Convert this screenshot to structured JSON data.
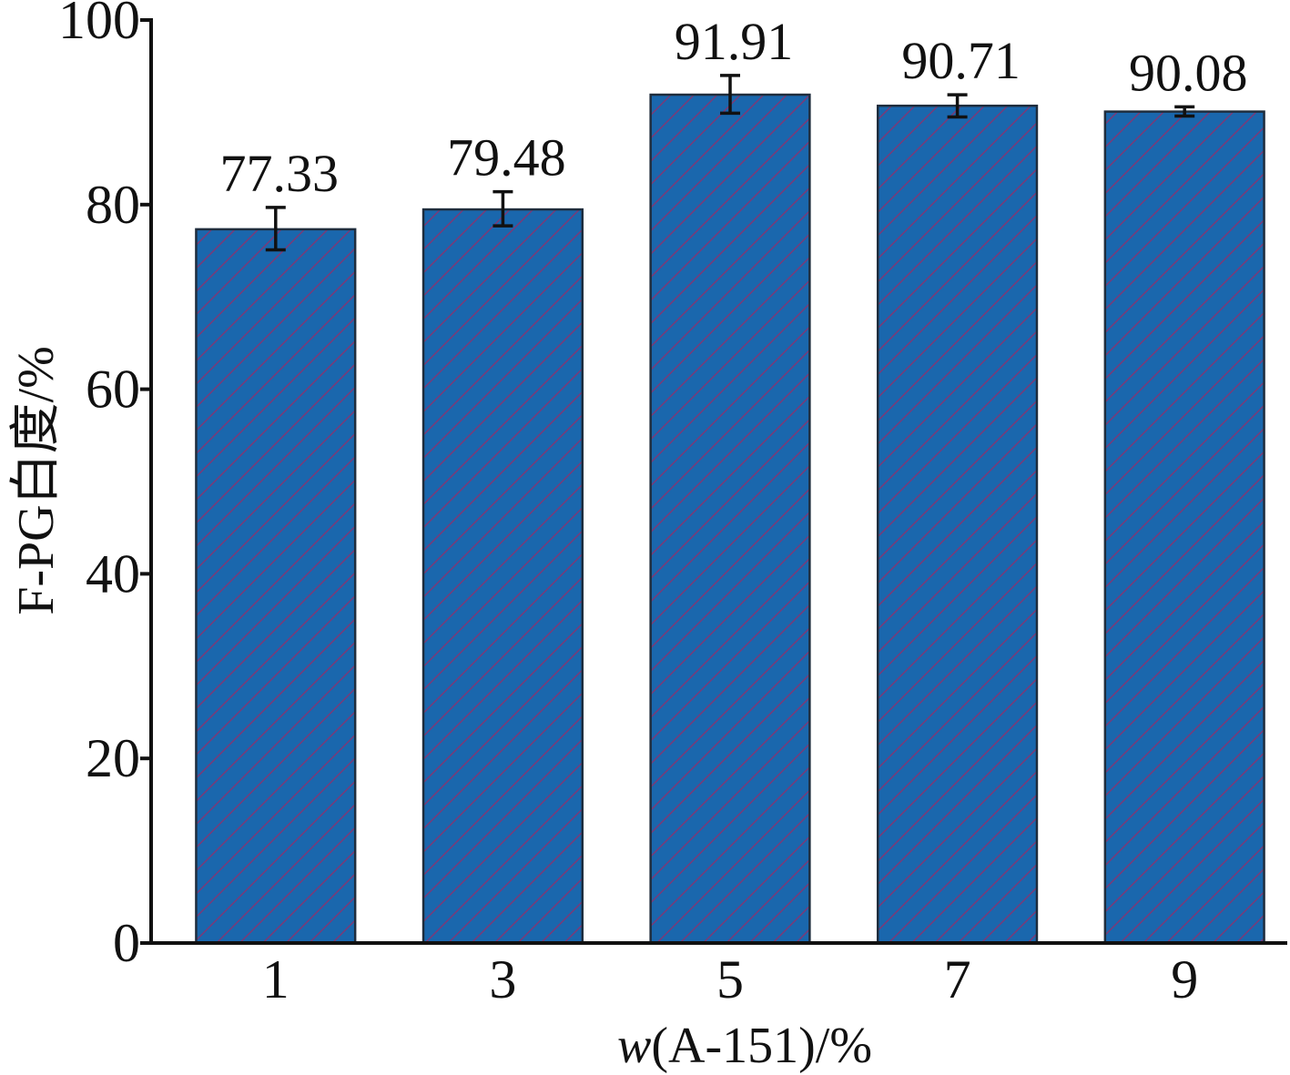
{
  "chart_data": {
    "type": "bar",
    "categories": [
      "1",
      "3",
      "5",
      "7",
      "9"
    ],
    "values": [
      77.33,
      79.48,
      91.91,
      90.71,
      90.08
    ],
    "error_low": [
      75.1,
      77.7,
      89.9,
      89.5,
      89.6
    ],
    "error_high": [
      79.7,
      81.4,
      94.0,
      91.9,
      90.6
    ],
    "value_labels": [
      "77.33",
      "79.48",
      "91.91",
      "90.71",
      "90.08"
    ],
    "ylim": [
      0,
      100
    ],
    "yticks": [
      0,
      20,
      40,
      60,
      80,
      100
    ],
    "ytick_labels": [
      "0",
      "20",
      "40",
      "60",
      "80",
      "100"
    ],
    "xlabel_italic": "w",
    "xlabel_rest": "(A-151)/%",
    "ylabel": "F-PG白度/%",
    "grid": false,
    "colors": {
      "bar_fill": "#1a67ad",
      "hatch": "#7a3a78",
      "bar_edge": "#1f2d3d",
      "axis": "#111111",
      "error_bar": "#111111"
    }
  }
}
